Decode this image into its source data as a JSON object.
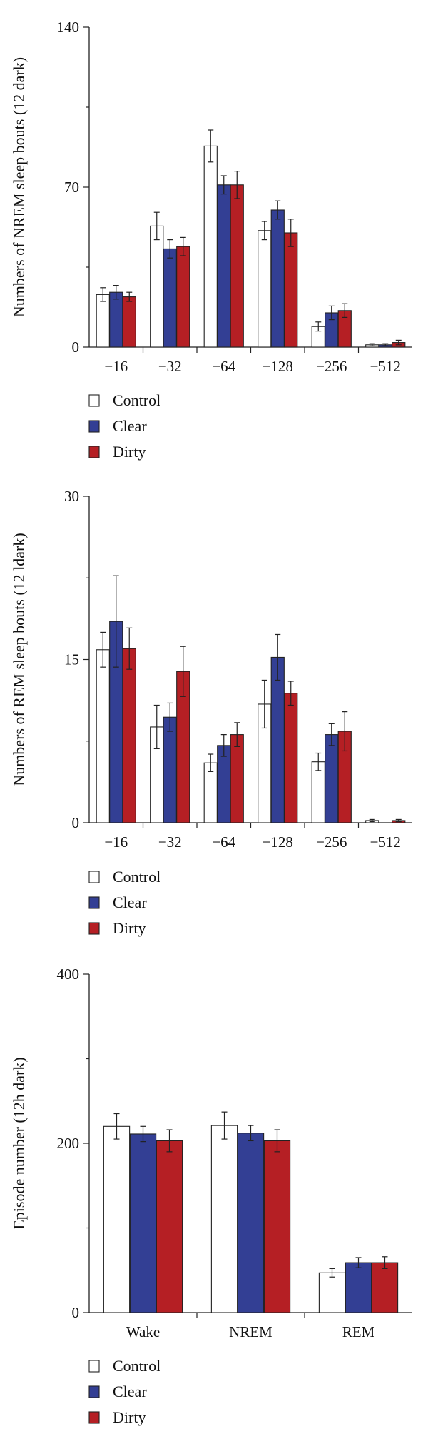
{
  "chart_data": [
    {
      "type": "bar",
      "ylabel": "Numbers of NREM sleep bouts (12 dark)",
      "ylim": [
        0,
        140
      ],
      "yticks": [
        0,
        70,
        140
      ],
      "categories": [
        "−16",
        "−32",
        "−64",
        "−128",
        "−256",
        "−512"
      ],
      "series": [
        {
          "name": "Control",
          "color": "#ffffff",
          "values": [
            23,
            53,
            88,
            51,
            9,
            1
          ],
          "errors": [
            3,
            6,
            7,
            4,
            2,
            0.5
          ]
        },
        {
          "name": "Clear",
          "color": "#333f94",
          "values": [
            24,
            43,
            71,
            60,
            15,
            1
          ],
          "errors": [
            3,
            4,
            4,
            4,
            3,
            0.5
          ]
        },
        {
          "name": "Dirty",
          "color": "#b51f24",
          "values": [
            22,
            44,
            71,
            50,
            16,
            2
          ],
          "errors": [
            2,
            4,
            6,
            6,
            3,
            1
          ]
        }
      ],
      "legend": "bottom-left"
    },
    {
      "type": "bar",
      "ylabel": "Numbers of REM sleep bouts (12 ldark)",
      "ylim": [
        0,
        30
      ],
      "yticks": [
        0,
        15,
        30
      ],
      "categories": [
        "−16",
        "−32",
        "−64",
        "−128",
        "−256",
        "−512"
      ],
      "series": [
        {
          "name": "Control",
          "color": "#ffffff",
          "values": [
            15.9,
            8.8,
            5.5,
            10.9,
            5.6,
            0.2
          ],
          "errors": [
            1.6,
            2.0,
            0.8,
            2.2,
            0.8,
            0.1
          ]
        },
        {
          "name": "Clear",
          "color": "#333f94",
          "values": [
            18.5,
            9.7,
            7.1,
            15.2,
            8.1,
            0
          ],
          "errors": [
            4.2,
            1.3,
            1.0,
            2.1,
            1.0,
            0
          ]
        },
        {
          "name": "Dirty",
          "color": "#b51f24",
          "values": [
            16.0,
            13.9,
            8.1,
            11.9,
            8.4,
            0.2
          ],
          "errors": [
            1.9,
            2.3,
            1.1,
            1.1,
            1.8,
            0.1
          ]
        }
      ],
      "legend": "bottom-left"
    },
    {
      "type": "bar",
      "ylabel": "Episode number (12h dark)",
      "ylim": [
        0,
        400
      ],
      "yticks": [
        0,
        200,
        400
      ],
      "categories": [
        "Wake",
        "NREM",
        "REM"
      ],
      "series": [
        {
          "name": "Control",
          "color": "#ffffff",
          "values": [
            220,
            221,
            47
          ],
          "errors": [
            15,
            16,
            5
          ]
        },
        {
          "name": "Clear",
          "color": "#333f94",
          "values": [
            211,
            212,
            59
          ],
          "errors": [
            9,
            9,
            6
          ]
        },
        {
          "name": "Dirty",
          "color": "#b51f24",
          "values": [
            203,
            203,
            59
          ],
          "errors": [
            13,
            13,
            7
          ]
        }
      ],
      "legend": "bottom-left"
    }
  ]
}
